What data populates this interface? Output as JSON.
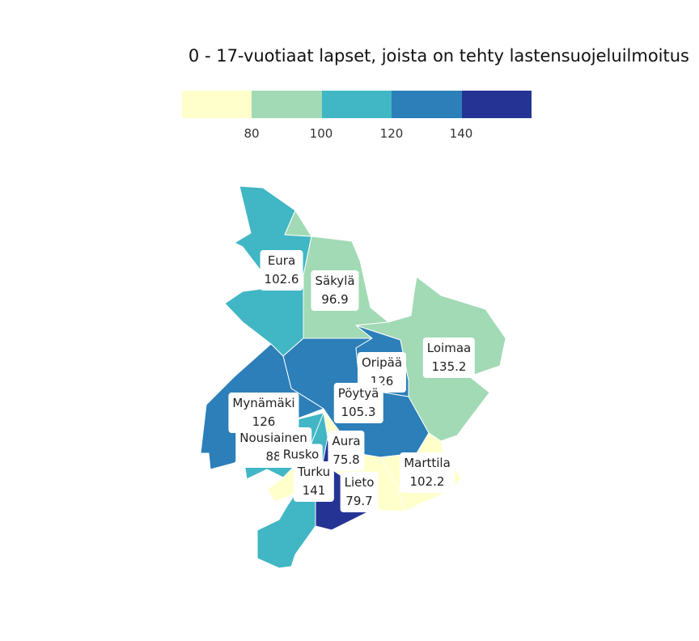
{
  "title": "0 - 17-vuotiaat lapset, joista on tehty lastensuojeluilmoitus",
  "legend": {
    "colors": [
      "#ffffcc",
      "#a1dab4",
      "#41b6c4",
      "#2c7fb8",
      "#253494"
    ],
    "ticks": [
      "80",
      "100",
      "120",
      "140"
    ]
  },
  "regions": [
    {
      "name": "Eura",
      "value": "102.6",
      "color": "#41b6c4"
    },
    {
      "name": "Säkylä",
      "value": "96.9",
      "color": "#a1dab4"
    },
    {
      "name": "Oripää",
      "value": "126",
      "color": "#2c7fb8"
    },
    {
      "name": "Loimaa",
      "value": "135.2",
      "color": "#2c7fb8"
    },
    {
      "name": "Pöytyä",
      "value": "105.3",
      "color": "#41b6c4"
    },
    {
      "name": "Mynämäki",
      "value": "126",
      "color": "#2c7fb8"
    },
    {
      "name": "Nousiainen",
      "value": "88",
      "color": "#a1dab4"
    },
    {
      "name": "Aura",
      "value": "75.8",
      "color": "#ffffcc"
    },
    {
      "name": "Rusko",
      "value": "",
      "color": "#ffffcc"
    },
    {
      "name": "Turku",
      "value": "141",
      "color": "#253494"
    },
    {
      "name": "Lieto",
      "value": "79.7",
      "color": "#ffffcc"
    },
    {
      "name": "Marttila",
      "value": "102.2",
      "color": "#41b6c4"
    }
  ]
}
